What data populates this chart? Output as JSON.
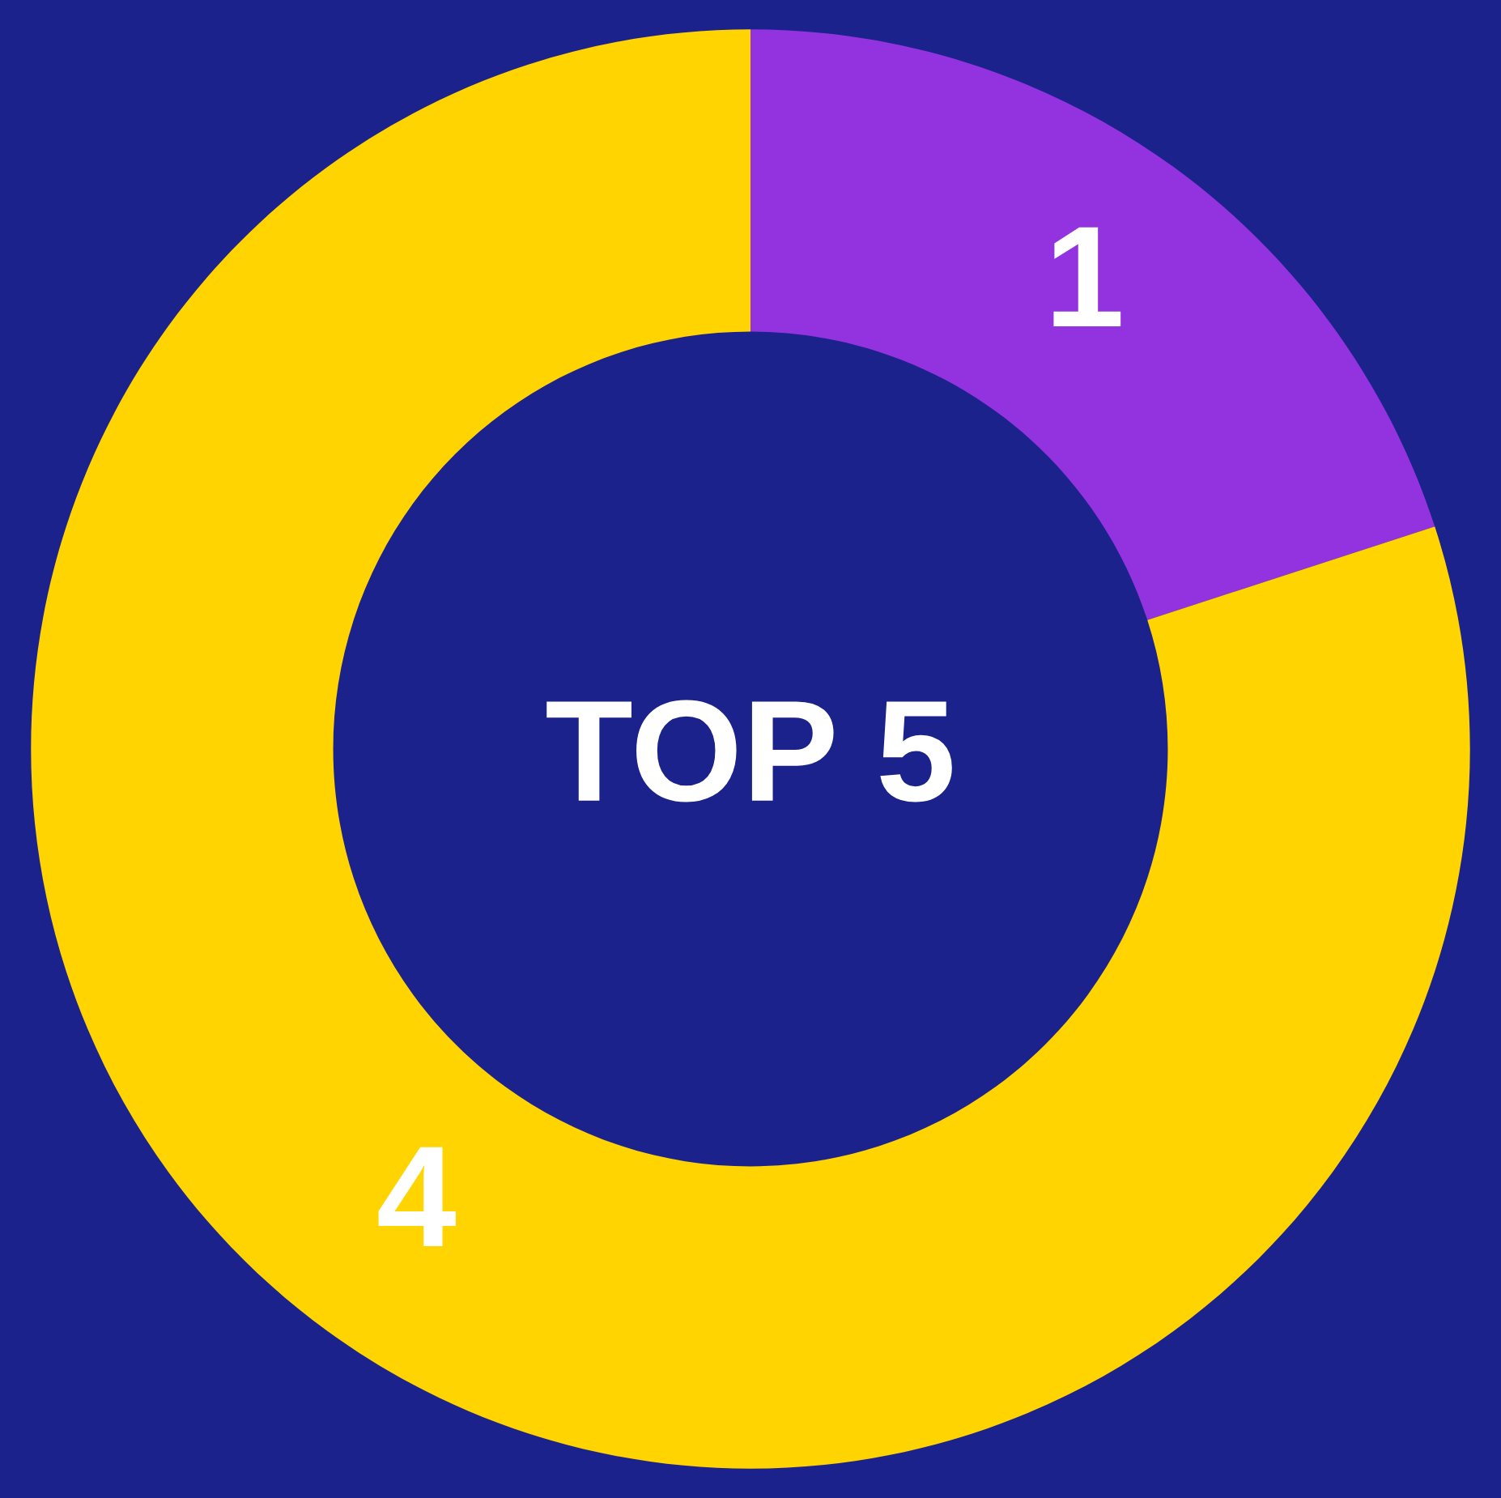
{
  "chart_data": {
    "type": "donut",
    "title": "TOP 5",
    "categories": [
      null,
      null
    ],
    "values": [
      1,
      4
    ],
    "colors": [
      "#9333e0",
      "#ffd400"
    ],
    "data_labels": true,
    "legend": false
  }
}
